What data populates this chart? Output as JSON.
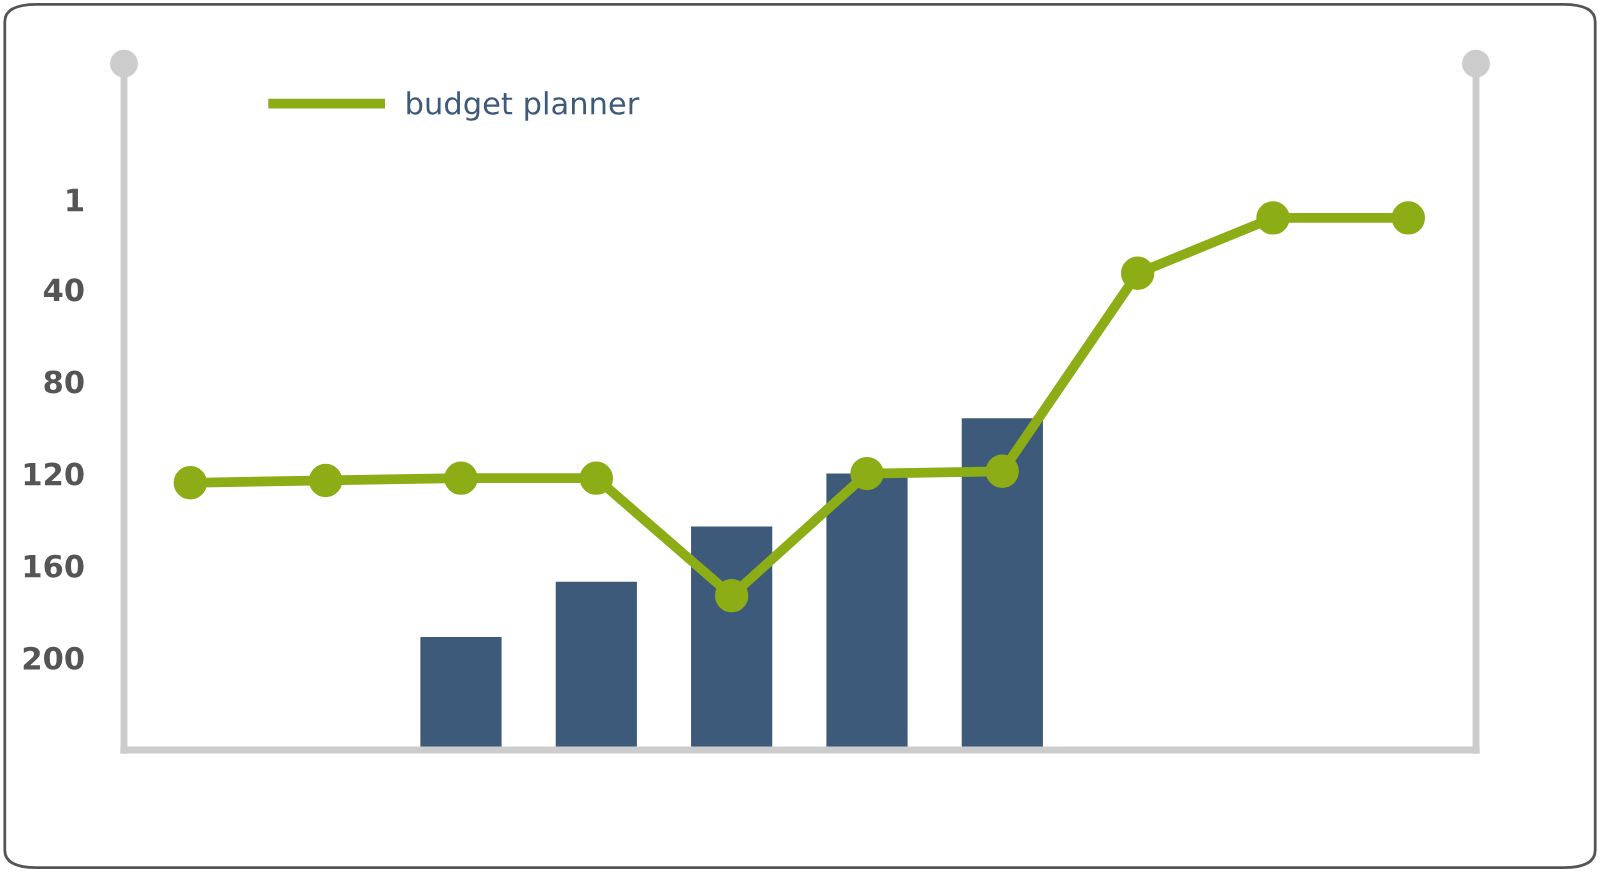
{
  "chart_data": {
    "type": "bar",
    "categories": [
      null,
      null,
      null,
      null,
      null,
      null,
      null,
      null,
      null,
      null
    ],
    "ylim": [
      240,
      -58
    ],
    "yticks": [
      1,
      40,
      80,
      120,
      160,
      200
    ],
    "tick_labels": "y",
    "legend": "top left",
    "grid": false,
    "series": [
      {
        "color": "#3d5a7a",
        "base": [
          null,
          null,
          240,
          240,
          240,
          240,
          240,
          null,
          null,
          null
        ],
        "values": [
          null,
          null,
          -49,
          -73,
          -97,
          -120,
          -144,
          null,
          null,
          null
        ]
      },
      {
        "type": "line",
        "name": "budget planner",
        "color": "#8cad15",
        "marker": "circle",
        "line_style": "solid",
        "values": [
          124,
          123,
          122,
          122,
          173,
          120,
          119,
          33,
          9,
          9
        ]
      }
    ]
  }
}
